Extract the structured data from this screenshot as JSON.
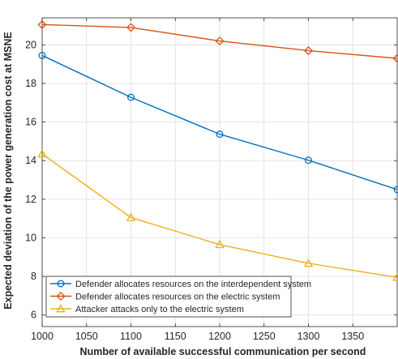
{
  "chart_data": {
    "type": "line",
    "title": "",
    "xlabel": "Number of available successful communication per second",
    "ylabel": "Expected deviation of the power generation cost at MSNE",
    "x": [
      1000,
      1100,
      1200,
      1300,
      1400
    ],
    "xlim": [
      1000,
      1400
    ],
    "ylim": [
      5.4,
      21.4
    ],
    "xticks": [
      1000,
      1050,
      1100,
      1150,
      1200,
      1250,
      1300,
      1350
    ],
    "yticks": [
      6,
      8,
      10,
      12,
      14,
      16,
      18,
      20
    ],
    "grid": true,
    "legend_position": "bottom-left",
    "series": [
      {
        "name": "Defender allocates resources on the interdependent system",
        "values": [
          19.45,
          17.28,
          15.37,
          14.02,
          12.5
        ],
        "color": "#0072BD",
        "marker": "circle"
      },
      {
        "name": "Defender allocates resources on the electric system",
        "values": [
          21.05,
          20.9,
          20.2,
          19.7,
          19.3
        ],
        "color": "#D95319",
        "marker": "diamond"
      },
      {
        "name": "Attacker attacks only to the electric system",
        "values": [
          14.35,
          11.05,
          9.65,
          8.68,
          7.95
        ],
        "color": "#EDB120",
        "marker": "triangle"
      }
    ]
  }
}
